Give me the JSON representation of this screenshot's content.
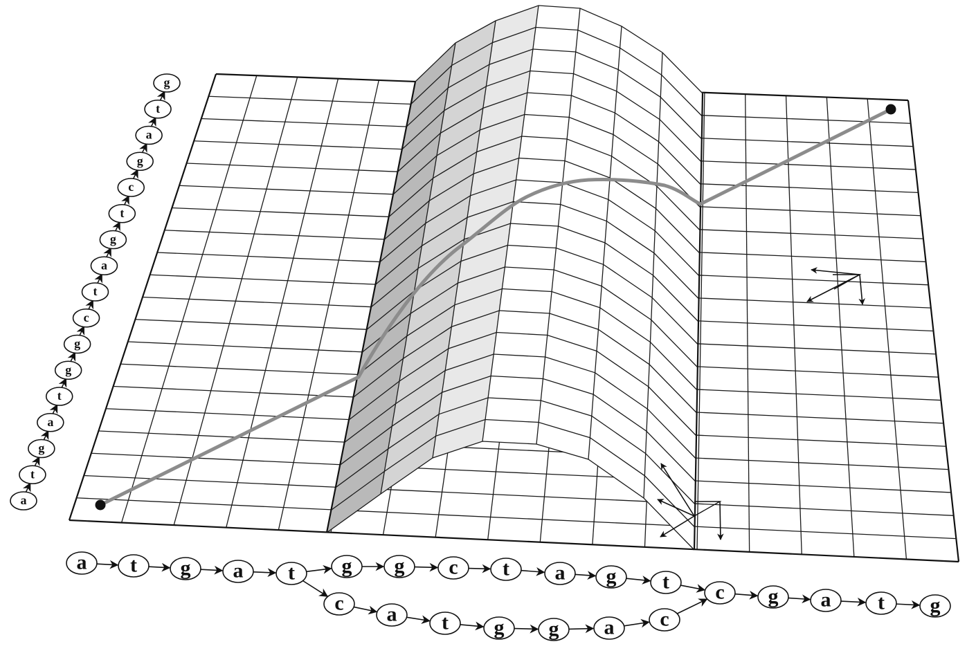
{
  "sequences": {
    "vertical": [
      "a",
      "t",
      "g",
      "a",
      "t",
      "g",
      "g",
      "c",
      "t",
      "a",
      "g",
      "t",
      "c",
      "g",
      "a",
      "t",
      "g"
    ],
    "horizontal_main": [
      "a",
      "t",
      "g",
      "a",
      "t",
      "g",
      "g",
      "c",
      "t",
      "a",
      "g",
      "t",
      "c",
      "g",
      "a",
      "t",
      "g"
    ],
    "horizontal_branch": [
      "c",
      "a",
      "t",
      "g",
      "g",
      "a",
      "c"
    ]
  },
  "icons": {
    "move_arrows_right": "three-direction-arrows-icon",
    "move_arrows_ridge": "three-direction-arrows-icon"
  }
}
